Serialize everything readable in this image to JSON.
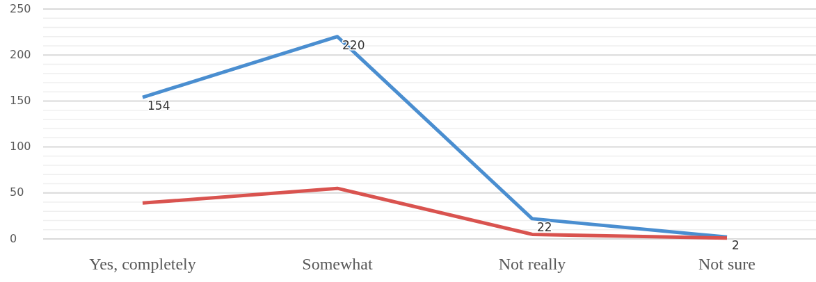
{
  "chart_data": {
    "type": "line",
    "categories": [
      "Yes, completely",
      "Somewhat",
      "Not really",
      "Not sure"
    ],
    "series": [
      {
        "color": "#4a8ed0",
        "values": [
          154,
          220,
          22,
          2
        ],
        "value_labels": [
          "154",
          "220",
          "22",
          "2"
        ]
      },
      {
        "color": "#d9534f",
        "values": [
          39,
          55,
          5,
          1
        ]
      }
    ],
    "ylim": [
      0,
      250
    ],
    "yticks": [
      0,
      {
        "value": 10,
        "label": null
      },
      {
        "value": 20,
        "label": null
      },
      {
        "value": 30,
        "label": null
      },
      {
        "value": 40,
        "label": null
      },
      50,
      {
        "value": 60,
        "label": null
      },
      {
        "value": 70,
        "label": null
      },
      {
        "value": 80,
        "label": null
      },
      {
        "value": 90,
        "label": null
      },
      100,
      {
        "value": 110,
        "label": null
      },
      {
        "value": 120,
        "label": null
      },
      {
        "value": 130,
        "label": null
      },
      {
        "value": 140,
        "label": null
      },
      150,
      {
        "value": 160,
        "label": null
      },
      {
        "value": 170,
        "label": null
      },
      {
        "value": 180,
        "label": null
      },
      {
        "value": 190,
        "label": null
      },
      200,
      {
        "value": 210,
        "label": null
      },
      {
        "value": 220,
        "label": null
      },
      {
        "value": 230,
        "label": null
      },
      {
        "value": 240,
        "label": null
      },
      250
    ],
    "grid": "y"
  }
}
